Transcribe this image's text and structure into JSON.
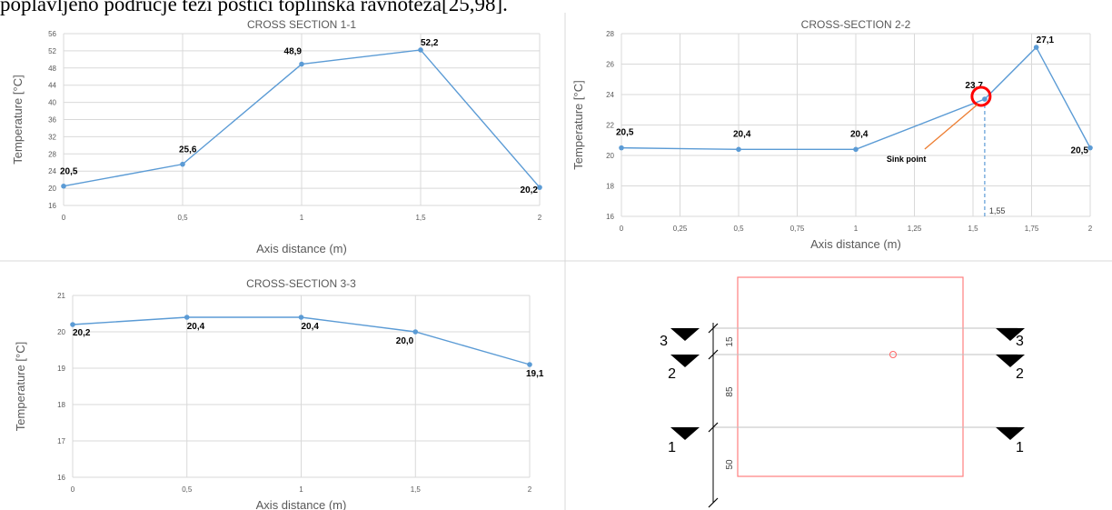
{
  "caption": "poplavljeno područje teži postići toplinska ravnoteža[25,98].",
  "colors": {
    "series": "#5b9bd5",
    "grid": "#d9d9d9",
    "axis_text": "#595959",
    "sink_circle": "#ff0000",
    "sink_arrow": "#ed7d31",
    "plan_outline": "#ff7f7f"
  },
  "chart_data": [
    {
      "type": "line",
      "title": "CROSS SECTION 1-1",
      "xlabel": "Axis distance (m)",
      "ylabel": "Temperature [°C]",
      "xlim": [
        0,
        2
      ],
      "ylim": [
        16,
        56
      ],
      "x_ticks": [
        0,
        0.5,
        1,
        1.5,
        2
      ],
      "x_tick_labels": [
        "0",
        "0,5",
        "1",
        "1,5",
        "2"
      ],
      "y_ticks": [
        16,
        20,
        24,
        28,
        32,
        36,
        40,
        44,
        48,
        52,
        56
      ],
      "x": [
        0,
        0.5,
        1,
        1.5,
        2
      ],
      "y": [
        20.5,
        25.6,
        48.9,
        52.2,
        20.2
      ],
      "data_labels": [
        "20,5",
        "25,6",
        "48,9",
        "52,2",
        "20,2"
      ],
      "grid": true
    },
    {
      "type": "line",
      "title": "CROSS-SECTION 2-2",
      "xlabel": "Axis distance (m)",
      "ylabel": "Temperature [°C]",
      "xlim": [
        0,
        2
      ],
      "ylim": [
        16,
        28
      ],
      "x_ticks": [
        0,
        0.25,
        0.5,
        0.75,
        1,
        1.25,
        1.5,
        1.75,
        2
      ],
      "x_tick_labels": [
        "0",
        "0,25",
        "0,5",
        "0,75",
        "1",
        "1,25",
        "1,5",
        "1,75",
        "2"
      ],
      "y_ticks": [
        16,
        18,
        20,
        22,
        24,
        26,
        28
      ],
      "x": [
        0,
        0.5,
        1,
        1.55,
        1.77,
        2
      ],
      "y": [
        20.5,
        20.4,
        20.4,
        23.7,
        27.1,
        20.5
      ],
      "data_labels": [
        "20,5",
        "20,4",
        "20,4",
        "23,7",
        "27,1",
        "20,5"
      ],
      "grid": true,
      "annotations": [
        {
          "text": "Sink point",
          "x": 1.55,
          "y": 23.7
        },
        {
          "text": "1,55",
          "x": 1.55,
          "y": 16
        }
      ]
    },
    {
      "type": "line",
      "title": "CROSS-SECTION 3-3",
      "xlabel": "Axis distance (m)",
      "ylabel": "Temperature [°C]",
      "xlim": [
        0,
        2
      ],
      "ylim": [
        16,
        21
      ],
      "x_ticks": [
        0,
        0.5,
        1,
        1.5,
        2
      ],
      "x_tick_labels": [
        "0",
        "0,5",
        "1",
        "1,5",
        "2"
      ],
      "y_ticks": [
        16,
        17,
        18,
        19,
        20,
        21
      ],
      "x": [
        0,
        0.5,
        1,
        1.5,
        2
      ],
      "y": [
        20.2,
        20.4,
        20.4,
        20.0,
        19.1
      ],
      "data_labels": [
        "20,2",
        "20,4",
        "20,4",
        "20,0",
        "19,1"
      ],
      "grid": true
    }
  ],
  "plan": {
    "sections": [
      {
        "label": "3"
      },
      {
        "label": "2"
      },
      {
        "label": "1"
      }
    ],
    "dimensions": [
      "15",
      "85",
      "50"
    ]
  }
}
